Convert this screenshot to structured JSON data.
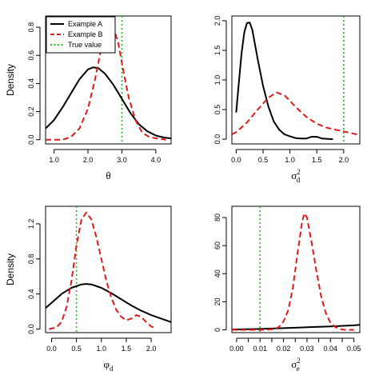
{
  "legend": {
    "entries": [
      {
        "label": "Example A",
        "color": "#000000",
        "dash": "solid"
      },
      {
        "label": "Example B",
        "color": "#e01a1a",
        "dash": "dashed"
      },
      {
        "label": "True value",
        "color": "#22bb22",
        "dash": "dotted"
      }
    ]
  },
  "chart_data": [
    {
      "id": "theta",
      "type": "line",
      "xlabel": {
        "base": "θ",
        "sub": "",
        "sup": ""
      },
      "ylabel": "Density",
      "xlim": [
        0.75,
        4.45
      ],
      "ylim": [
        -0.03,
        0.88
      ],
      "xticks": [
        1.0,
        2.0,
        3.0,
        4.0
      ],
      "xtick_labels": [
        "1.0",
        "2.0",
        "3.0",
        "4.0"
      ],
      "yticks": [
        0.0,
        0.2,
        0.4,
        0.6,
        0.8
      ],
      "ytick_labels": [
        "0.0",
        "0.2",
        "0.4",
        "0.6",
        "0.8"
      ],
      "true_value": 3.0,
      "series": [
        {
          "name": "Example A",
          "x": [
            0.75,
            1.0,
            1.25,
            1.5,
            1.75,
            2.0,
            2.15,
            2.3,
            2.5,
            2.75,
            3.0,
            3.25,
            3.5,
            3.75,
            4.0,
            4.25,
            4.45
          ],
          "y": [
            0.08,
            0.14,
            0.23,
            0.33,
            0.43,
            0.5,
            0.515,
            0.51,
            0.47,
            0.39,
            0.29,
            0.19,
            0.11,
            0.06,
            0.03,
            0.015,
            0.01
          ]
        },
        {
          "name": "Example B",
          "x": [
            0.75,
            1.25,
            1.5,
            1.75,
            2.0,
            2.2,
            2.4,
            2.55,
            2.65,
            2.75,
            2.9,
            3.05,
            3.2,
            3.4,
            3.6,
            3.8,
            4.0,
            4.3
          ],
          "y": [
            0.0,
            0.0,
            0.02,
            0.08,
            0.22,
            0.42,
            0.66,
            0.79,
            0.82,
            0.8,
            0.68,
            0.48,
            0.3,
            0.14,
            0.05,
            0.02,
            0.01,
            0.0
          ]
        }
      ]
    },
    {
      "id": "sigma_d",
      "type": "line",
      "xlabel": {
        "base": "σ",
        "sub": "d",
        "sup": "2"
      },
      "ylabel": "",
      "xlim": [
        -0.08,
        2.3
      ],
      "ylim": [
        -0.08,
        2.08
      ],
      "xticks": [
        0.0,
        0.5,
        1.0,
        1.5,
        2.0
      ],
      "xtick_labels": [
        "0.0",
        "0.5",
        "1.0",
        "1.5",
        "2.0"
      ],
      "yticks": [
        0.0,
        0.5,
        1.0,
        1.5,
        2.0
      ],
      "ytick_labels": [
        "0.0",
        "0.5",
        "1.0",
        "1.5",
        "2.0"
      ],
      "true_value": 2.0,
      "series": [
        {
          "name": "Example A",
          "x": [
            0.0,
            0.05,
            0.1,
            0.15,
            0.2,
            0.25,
            0.3,
            0.35,
            0.4,
            0.5,
            0.6,
            0.7,
            0.8,
            0.9,
            1.0,
            1.1,
            1.2,
            1.3,
            1.4,
            1.5,
            1.6,
            1.8
          ],
          "y": [
            0.45,
            0.95,
            1.45,
            1.8,
            1.96,
            1.97,
            1.85,
            1.6,
            1.35,
            0.9,
            0.55,
            0.3,
            0.16,
            0.08,
            0.05,
            0.02,
            0.01,
            0.01,
            0.04,
            0.04,
            0.01,
            0.0
          ]
        },
        {
          "name": "Example A",
          "x": [
            -0.08,
            0.0,
            0.2,
            0.4,
            0.6,
            0.75,
            0.9,
            1.1,
            1.3,
            1.5,
            1.7,
            1.9,
            2.1,
            2.3
          ],
          "y": [
            0.08,
            0.12,
            0.28,
            0.5,
            0.7,
            0.79,
            0.74,
            0.55,
            0.38,
            0.26,
            0.19,
            0.15,
            0.11,
            0.07
          ]
        }
      ]
    },
    {
      "id": "phi_d",
      "type": "line",
      "xlabel": {
        "base": "φ",
        "sub": "d",
        "sup": ""
      },
      "ylabel": "Density",
      "xlim": [
        -0.12,
        2.4
      ],
      "ylim": [
        -0.04,
        1.4
      ],
      "xticks": [
        0.0,
        0.5,
        1.0,
        1.5,
        2.0
      ],
      "xtick_labels": [
        "0.0",
        "0.5",
        "1.0",
        "1.5",
        "2.0"
      ],
      "yticks": [
        0.0,
        0.4,
        0.8,
        1.2
      ],
      "ytick_labels": [
        "0.0",
        "0.4",
        "0.8",
        "1.2"
      ],
      "true_value": 0.5,
      "series": [
        {
          "name": "Example A",
          "x": [
            -0.12,
            0.0,
            0.2,
            0.4,
            0.6,
            0.7,
            0.8,
            1.0,
            1.2,
            1.4,
            1.6,
            1.8,
            2.0,
            2.2,
            2.4
          ],
          "y": [
            0.24,
            0.3,
            0.4,
            0.47,
            0.51,
            0.515,
            0.51,
            0.47,
            0.41,
            0.34,
            0.27,
            0.21,
            0.16,
            0.12,
            0.08
          ]
        },
        {
          "name": "Example B",
          "x": [
            -0.05,
            0.1,
            0.2,
            0.3,
            0.4,
            0.5,
            0.6,
            0.7,
            0.8,
            0.9,
            1.0,
            1.1,
            1.2,
            1.3,
            1.4,
            1.5,
            1.6,
            1.7,
            1.8,
            1.9,
            2.0,
            2.1
          ],
          "y": [
            0.0,
            0.02,
            0.08,
            0.25,
            0.55,
            0.95,
            1.25,
            1.33,
            1.25,
            1.05,
            0.8,
            0.55,
            0.36,
            0.22,
            0.14,
            0.1,
            0.12,
            0.16,
            0.14,
            0.08,
            0.03,
            0.01
          ]
        }
      ]
    },
    {
      "id": "sigma_e",
      "type": "line",
      "xlabel": {
        "base": "σ",
        "sub": "e",
        "sup": "2"
      },
      "ylabel": "",
      "xlim": [
        -0.002,
        0.0525
      ],
      "ylim": [
        -2.0,
        88.0
      ],
      "xticks": [
        0.0,
        0.005,
        0.01,
        0.015,
        0.02,
        0.025,
        0.03,
        0.035,
        0.04,
        0.045,
        0.05
      ],
      "xtick_labels": [
        "0.00",
        "",
        "0.01",
        "",
        "0.02",
        "",
        "0.03",
        "",
        "0.04",
        "",
        "0.05"
      ],
      "yticks": [
        0,
        20,
        40,
        60,
        80
      ],
      "ytick_labels": [
        "0",
        "20",
        "40",
        "60",
        "80"
      ],
      "true_value": 0.01,
      "series": [
        {
          "name": "Example A",
          "x": [
            -0.002,
            0.01,
            0.02,
            0.03,
            0.04,
            0.05,
            0.0525
          ],
          "y": [
            0.2,
            0.6,
            1.2,
            1.8,
            2.4,
            3.2,
            3.6
          ]
        },
        {
          "name": "Example B",
          "x": [
            -0.002,
            0.012,
            0.016,
            0.018,
            0.02,
            0.022,
            0.024,
            0.026,
            0.028,
            0.029,
            0.03,
            0.032,
            0.034,
            0.036,
            0.038,
            0.04,
            0.042,
            0.044,
            0.046,
            0.05
          ],
          "y": [
            0.0,
            0.0,
            0.5,
            2.0,
            6.0,
            14.0,
            30.0,
            55.0,
            78.0,
            83.0,
            80.0,
            62.0,
            42.0,
            24.0,
            12.0,
            5.0,
            2.0,
            0.5,
            0.0,
            0.0
          ]
        }
      ]
    }
  ]
}
